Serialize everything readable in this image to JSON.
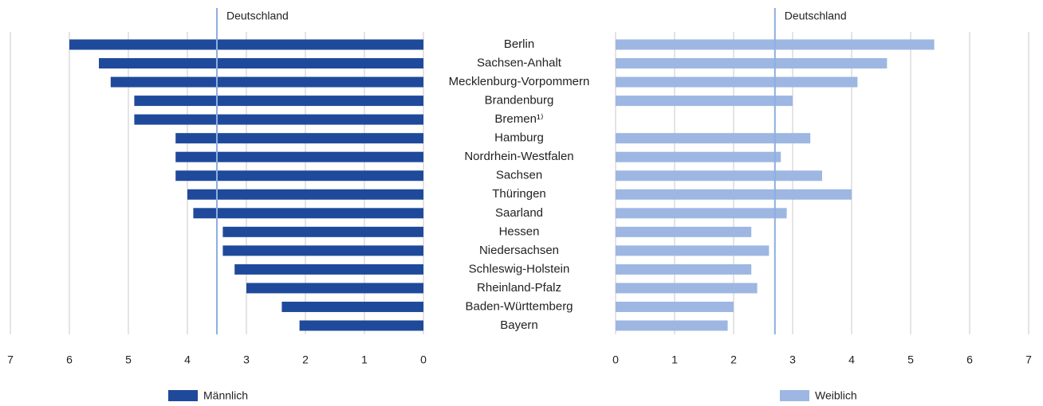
{
  "chart_data": {
    "type": "bar",
    "orientation": "horizontal",
    "grid": true,
    "categories": [
      "Berlin",
      "Sachsen-Anhalt",
      "Mecklenburg-Vorpommern",
      "Brandenburg",
      "Bremen¹⁾",
      "Hamburg",
      "Nordrhein-Westfalen",
      "Sachsen",
      "Thüringen",
      "Saarland",
      "Hessen",
      "Niedersachsen",
      "Schleswig-Holstein",
      "Rheinland-Pfalz",
      "Baden-Württemberg",
      "Bayern"
    ],
    "series": [
      {
        "name": "Männlich",
        "color": "#1f4a9b",
        "values": [
          6.0,
          5.5,
          5.3,
          4.9,
          4.9,
          4.2,
          4.2,
          4.2,
          4.0,
          3.9,
          3.4,
          3.4,
          3.2,
          3.0,
          2.4,
          2.1
        ],
        "reference": {
          "label": "Deutschland",
          "value": 3.5
        }
      },
      {
        "name": "Weiblich",
        "color": "#9db7e2",
        "values": [
          5.4,
          4.6,
          4.1,
          3.0,
          null,
          3.3,
          2.8,
          3.5,
          4.0,
          2.9,
          2.3,
          2.6,
          2.3,
          2.4,
          2.0,
          1.9
        ],
        "reference": {
          "label": "Deutschland",
          "value": 2.7
        }
      }
    ],
    "xlim": [
      0,
      7
    ],
    "xticks": [
      0,
      1,
      2,
      3,
      4,
      5,
      6,
      7
    ]
  }
}
